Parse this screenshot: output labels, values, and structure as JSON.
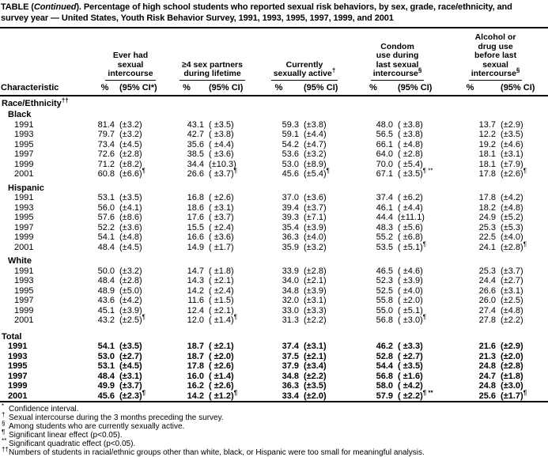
{
  "title": {
    "line1_pre": "TABLE (",
    "line1_italic": "Continued",
    "line1_rest": "). Percentage of high school students who reported sexual risk behaviors, by sex, grade, race/ethnicity, and",
    "line2": "survey year — United States, Youth Risk Behavior Survey, 1991, 1993, 1995, 1997, 1999, and 2001"
  },
  "header": {
    "characteristic": "Characteristic",
    "groups": [
      {
        "lines": [
          "Ever had",
          "sexual",
          "intercourse"
        ],
        "sup": "",
        "pct": "%",
        "ci": "(95% CI*)"
      },
      {
        "lines": [
          "≥4 sex partners",
          "during lifetime"
        ],
        "sup": "",
        "pct": "%",
        "ci": "(95% CI)"
      },
      {
        "lines": [
          "Currently",
          "sexually active"
        ],
        "sup": "†",
        "pct": "%",
        "ci": "(95% CI)"
      },
      {
        "lines": [
          "Condom",
          "use during",
          "last sexual",
          "intercourse"
        ],
        "sup": "§",
        "pct": "%",
        "ci": "(95% CI)"
      },
      {
        "lines": [
          "Alcohol or",
          "drug use",
          "before last",
          "sexual",
          "intercourse"
        ],
        "sup": "§",
        "pct": "%",
        "ci": "(95% CI)"
      }
    ]
  },
  "body": [
    {
      "t": "section",
      "label": "Race/Ethnicity",
      "sup": "††"
    },
    {
      "t": "sub",
      "label": "Black"
    },
    {
      "t": "row",
      "label": "1991",
      "c": [
        [
          "81.4",
          "(±3.2)",
          ""
        ],
        [
          "43.1",
          "( ±3.5)",
          ""
        ],
        [
          "59.3",
          "(±3.8)",
          ""
        ],
        [
          "48.0",
          "( ±3.8)",
          ""
        ],
        [
          "13.7",
          "(±2.9)",
          ""
        ]
      ]
    },
    {
      "t": "row",
      "label": "1993",
      "c": [
        [
          "79.7",
          "(±3.2)",
          ""
        ],
        [
          "42.7",
          "( ±3.8)",
          ""
        ],
        [
          "59.1",
          "(±4.4)",
          ""
        ],
        [
          "56.5",
          "( ±3.8)",
          ""
        ],
        [
          "12.2",
          "(±3.5)",
          ""
        ]
      ]
    },
    {
      "t": "row",
      "label": "1995",
      "c": [
        [
          "73.4",
          "(±4.5)",
          ""
        ],
        [
          "35.6",
          "( ±4.4)",
          ""
        ],
        [
          "54.2",
          "(±4.7)",
          ""
        ],
        [
          "66.1",
          "( ±4.8)",
          ""
        ],
        [
          "19.2",
          "(±4.6)",
          ""
        ]
      ]
    },
    {
      "t": "row",
      "label": "1997",
      "c": [
        [
          "72.6",
          "(±2.8)",
          ""
        ],
        [
          "38.5",
          "( ±3.6)",
          ""
        ],
        [
          "53.6",
          "(±3.2)",
          ""
        ],
        [
          "64.0",
          "( ±2.8)",
          ""
        ],
        [
          "18.1",
          "(±3.1)",
          ""
        ]
      ]
    },
    {
      "t": "row",
      "label": "1999",
      "c": [
        [
          "71.2",
          "(±8.2)",
          ""
        ],
        [
          "34.4",
          "(±10.3)",
          ""
        ],
        [
          "53.0",
          "(±8.9)",
          ""
        ],
        [
          "70.0",
          "( ±5.4)",
          ""
        ],
        [
          "18.1",
          "(±7.9)",
          ""
        ]
      ]
    },
    {
      "t": "row",
      "label": "2001",
      "c": [
        [
          "60.8",
          "(±6.6)",
          "¶"
        ],
        [
          "26.6",
          "( ±3.7)",
          "¶"
        ],
        [
          "45.6",
          "(±5.4)",
          "¶"
        ],
        [
          "67.1",
          "( ±3.5)",
          "¶ **"
        ],
        [
          "17.8",
          "(±2.6)",
          "¶"
        ]
      ]
    },
    {
      "t": "sub",
      "label": "Hispanic",
      "gap": true
    },
    {
      "t": "row",
      "label": "1991",
      "c": [
        [
          "53.1",
          "(±3.5)",
          ""
        ],
        [
          "16.8",
          "( ±2.6)",
          ""
        ],
        [
          "37.0",
          "(±3.6)",
          ""
        ],
        [
          "37.4",
          "( ±6.2)",
          ""
        ],
        [
          "17.8",
          "(±4.2)",
          ""
        ]
      ]
    },
    {
      "t": "row",
      "label": "1993",
      "c": [
        [
          "56.0",
          "(±4.1)",
          ""
        ],
        [
          "18.6",
          "( ±3.1)",
          ""
        ],
        [
          "39.4",
          "(±3.7)",
          ""
        ],
        [
          "46.1",
          "( ±4.4)",
          ""
        ],
        [
          "18.2",
          "(±4.8)",
          ""
        ]
      ]
    },
    {
      "t": "row",
      "label": "1995",
      "c": [
        [
          "57.6",
          "(±8.6)",
          ""
        ],
        [
          "17.6",
          "( ±3.7)",
          ""
        ],
        [
          "39.3",
          "(±7.1)",
          ""
        ],
        [
          "44.4",
          "(±11.1)",
          ""
        ],
        [
          "24.9",
          "(±5.2)",
          ""
        ]
      ]
    },
    {
      "t": "row",
      "label": "1997",
      "c": [
        [
          "52.2",
          "(±3.6)",
          ""
        ],
        [
          "15.5",
          "( ±2.4)",
          ""
        ],
        [
          "35.4",
          "(±3.9)",
          ""
        ],
        [
          "48.3",
          "( ±5.6)",
          ""
        ],
        [
          "25.3",
          "(±5.3)",
          ""
        ]
      ]
    },
    {
      "t": "row",
      "label": "1999",
      "c": [
        [
          "54.1",
          "(±4.8)",
          ""
        ],
        [
          "16.6",
          "( ±3.6)",
          ""
        ],
        [
          "36.3",
          "(±4.0)",
          ""
        ],
        [
          "55.2",
          "( ±6.8)",
          ""
        ],
        [
          "22.5",
          "(±4.0)",
          ""
        ]
      ]
    },
    {
      "t": "row",
      "label": "2001",
      "c": [
        [
          "48.4",
          "(±4.5)",
          ""
        ],
        [
          "14.9",
          "( ±1.7)",
          ""
        ],
        [
          "35.9",
          "(±3.2)",
          ""
        ],
        [
          "53.5",
          "( ±5.1)",
          "¶"
        ],
        [
          "24.1",
          "(±2.8)",
          "¶"
        ]
      ]
    },
    {
      "t": "sub",
      "label": "White",
      "gap": true
    },
    {
      "t": "row",
      "label": "1991",
      "c": [
        [
          "50.0",
          "(±3.2)",
          ""
        ],
        [
          "14.7",
          "( ±1.8)",
          ""
        ],
        [
          "33.9",
          "(±2.8)",
          ""
        ],
        [
          "46.5",
          "( ±4.6)",
          ""
        ],
        [
          "25.3",
          "(±3.7)",
          ""
        ]
      ]
    },
    {
      "t": "row",
      "label": "1993",
      "c": [
        [
          "48.4",
          "(±2.8)",
          ""
        ],
        [
          "14.3",
          "( ±2.1)",
          ""
        ],
        [
          "34.0",
          "(±2.1)",
          ""
        ],
        [
          "52.3",
          "( ±3.9)",
          ""
        ],
        [
          "24.4",
          "(±2.7)",
          ""
        ]
      ]
    },
    {
      "t": "row",
      "label": "1995",
      "c": [
        [
          "48.9",
          "(±5.0)",
          ""
        ],
        [
          "14.2",
          "( ±2.4)",
          ""
        ],
        [
          "34.8",
          "(±3.9)",
          ""
        ],
        [
          "52.5",
          "( ±4.0)",
          ""
        ],
        [
          "26.6",
          "(±3.1)",
          ""
        ]
      ]
    },
    {
      "t": "row",
      "label": "1997",
      "c": [
        [
          "43.6",
          "(±4.2)",
          ""
        ],
        [
          "11.6",
          "( ±1.5)",
          ""
        ],
        [
          "32.0",
          "(±3.1)",
          ""
        ],
        [
          "55.8",
          "( ±2.0)",
          ""
        ],
        [
          "26.0",
          "(±2.5)",
          ""
        ]
      ]
    },
    {
      "t": "row",
      "label": "1999",
      "c": [
        [
          "45.1",
          "(±3.9)",
          ""
        ],
        [
          "12.4",
          "( ±2.1)",
          ""
        ],
        [
          "33.0",
          "(±3.3)",
          ""
        ],
        [
          "55.0",
          "( ±5.1)",
          ""
        ],
        [
          "27.4",
          "(±4.8)",
          ""
        ]
      ]
    },
    {
      "t": "row",
      "label": "2001",
      "c": [
        [
          "43.2",
          "(±2.5)",
          "¶"
        ],
        [
          "12.0",
          "( ±1.4)",
          "¶"
        ],
        [
          "31.3",
          "(±2.2)",
          ""
        ],
        [
          "56.8",
          "( ±3.0)",
          "¶"
        ],
        [
          "27.8",
          "(±2.2)",
          ""
        ]
      ]
    },
    {
      "t": "totalsec",
      "label": "Total",
      "sup": ""
    },
    {
      "t": "trow",
      "label": "1991",
      "c": [
        [
          "54.1",
          "(±3.5)",
          ""
        ],
        [
          "18.7",
          "( ±2.1)",
          ""
        ],
        [
          "37.4",
          "(±3.1)",
          ""
        ],
        [
          "46.2",
          "( ±3.3)",
          ""
        ],
        [
          "21.6",
          "(±2.9)",
          ""
        ]
      ]
    },
    {
      "t": "trow",
      "label": "1993",
      "c": [
        [
          "53.0",
          "(±2.7)",
          ""
        ],
        [
          "18.7",
          "( ±2.0)",
          ""
        ],
        [
          "37.5",
          "(±2.1)",
          ""
        ],
        [
          "52.8",
          "( ±2.7)",
          ""
        ],
        [
          "21.3",
          "(±2.0)",
          ""
        ]
      ]
    },
    {
      "t": "trow",
      "label": "1995",
      "c": [
        [
          "53.1",
          "(±4.5)",
          ""
        ],
        [
          "17.8",
          "( ±2.6)",
          ""
        ],
        [
          "37.9",
          "(±3.4)",
          ""
        ],
        [
          "54.4",
          "( ±3.5)",
          ""
        ],
        [
          "24.8",
          "(±2.8)",
          ""
        ]
      ]
    },
    {
      "t": "trow",
      "label": "1997",
      "c": [
        [
          "48.4",
          "(±3.1)",
          ""
        ],
        [
          "16.0",
          "( ±1.4)",
          ""
        ],
        [
          "34.8",
          "(±2.2)",
          ""
        ],
        [
          "56.8",
          "( ±1.6)",
          ""
        ],
        [
          "24.7",
          "(±1.8)",
          ""
        ]
      ]
    },
    {
      "t": "trow",
      "label": "1999",
      "c": [
        [
          "49.9",
          "(±3.7)",
          ""
        ],
        [
          "16.2",
          "( ±2.6)",
          ""
        ],
        [
          "36.3",
          "(±3.5)",
          ""
        ],
        [
          "58.0",
          "( ±4.2)",
          ""
        ],
        [
          "24.8",
          "(±3.0)",
          ""
        ]
      ]
    },
    {
      "t": "trow",
      "label": "2001",
      "c": [
        [
          "45.6",
          "(±2.3)",
          "¶"
        ],
        [
          "14.2",
          "( ±1.2)",
          "¶"
        ],
        [
          "33.4",
          "(±2.0)",
          ""
        ],
        [
          "57.9",
          "( ±2.2)",
          "¶ **"
        ],
        [
          "25.6",
          "(±1.7)",
          "¶"
        ]
      ]
    }
  ],
  "footnotes": [
    {
      "marker": "*",
      "text": "Confidence interval."
    },
    {
      "marker": "†",
      "text": "Sexual intercourse during the 3 months preceding the survey."
    },
    {
      "marker": "§",
      "text": "Among students who are currently sexually active."
    },
    {
      "marker": "¶",
      "text": "Significant linear effect (p<0.05)."
    },
    {
      "marker": "**",
      "text": "Significant quadratic effect (p<0.05)."
    },
    {
      "marker": "††",
      "text": "Numbers of students in racial/ethnic groups other than white, black, or Hispanic were too small for meaningful analysis."
    }
  ]
}
